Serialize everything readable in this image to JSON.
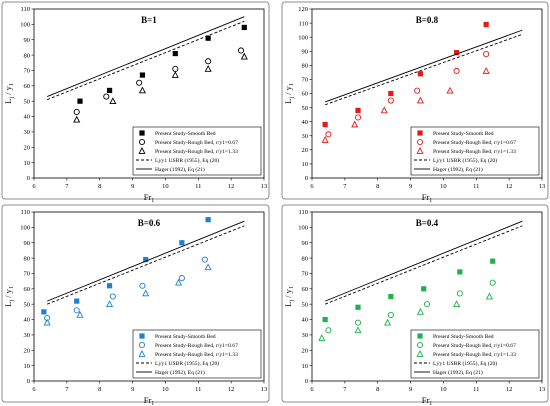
{
  "chart_data": [
    {
      "type": "scatter",
      "title": "B=1",
      "xlabel": "Fr",
      "xlabel_sub": "1",
      "ylabel": "L",
      "ylabel_sub": "j",
      "ylabel_mid": " / y",
      "ylabel_mid_sub": "1",
      "xlim": [
        6,
        13
      ],
      "ylim": [
        0,
        110
      ],
      "xticks": [
        "6",
        "7",
        "8",
        "9",
        "10",
        "11",
        "12",
        "13"
      ],
      "yticks": [
        "0",
        "10",
        "20",
        "30",
        "40",
        "50",
        "60",
        "70",
        "80",
        "90",
        "100",
        "110"
      ],
      "color": "#000000",
      "legend_position": "bottom-right",
      "series": [
        {
          "name": "Present Study-Smooth Bed",
          "marker": "square",
          "x": [
            7.4,
            8.3,
            9.3,
            10.3,
            11.3,
            12.4
          ],
          "y": [
            50,
            57,
            67,
            81,
            91,
            98
          ]
        },
        {
          "name": "Present Study-Rough Bed, r/y1=0.67",
          "marker": "circle",
          "x": [
            7.3,
            8.2,
            9.2,
            10.3,
            11.3,
            12.3
          ],
          "y": [
            43,
            53,
            62,
            71,
            76,
            83
          ]
        },
        {
          "name": "Present Study-Rough Bed, r/y1=1.33",
          "marker": "triangle",
          "x": [
            7.3,
            8.4,
            9.3,
            10.3,
            11.3,
            12.4
          ],
          "y": [
            38,
            50,
            57,
            67,
            71,
            79
          ]
        },
        {
          "name": "Lj/y1 USBR (1955), Eq (20)",
          "style": "dashed",
          "x": [
            6.4,
            12.4
          ],
          "y": [
            51,
            102
          ]
        },
        {
          "name": "Hager (1992), Eq (21)",
          "style": "solid",
          "x": [
            6.4,
            12.4
          ],
          "y": [
            53,
            105
          ]
        }
      ]
    },
    {
      "type": "scatter",
      "title": "B=0.8",
      "xlabel": "Fr",
      "xlabel_sub": "1",
      "ylabel": "L",
      "ylabel_sub": "j",
      "ylabel_mid": " / y",
      "ylabel_mid_sub": "1",
      "xlim": [
        6,
        13
      ],
      "ylim": [
        0,
        120
      ],
      "xticks": [
        "6",
        "7",
        "8",
        "9",
        "10",
        "11",
        "12",
        "13"
      ],
      "yticks": [
        "0",
        "10",
        "20",
        "30",
        "40",
        "50",
        "60",
        "70",
        "80",
        "90",
        "100",
        "110",
        "120"
      ],
      "color": "#e31a1c",
      "legend_position": "bottom-right",
      "series": [
        {
          "name": "Present Study-Smooth Bed",
          "marker": "square",
          "x": [
            6.4,
            7.4,
            8.4,
            9.3,
            10.4,
            11.3
          ],
          "y": [
            38,
            48,
            60,
            74,
            89,
            109
          ]
        },
        {
          "name": "Present Study-Rough Bed, r/y1=0.67",
          "marker": "circle",
          "x": [
            6.5,
            7.4,
            8.4,
            9.2,
            10.4,
            11.3
          ],
          "y": [
            31,
            43,
            55,
            62,
            76,
            88
          ]
        },
        {
          "name": "Present Study-Rough Bed, r/y1=1.33",
          "marker": "triangle",
          "x": [
            6.4,
            7.3,
            8.2,
            9.3,
            10.2,
            11.3
          ],
          "y": [
            27,
            38,
            48,
            55,
            62,
            76
          ]
        },
        {
          "name": "Lj/y1 USBR (1955), Eq (20)",
          "style": "dashed",
          "x": [
            6.4,
            12.4
          ],
          "y": [
            52,
            102
          ]
        },
        {
          "name": "Hager (1992), Eq (21)",
          "style": "solid",
          "x": [
            6.4,
            12.4
          ],
          "y": [
            54,
            105
          ]
        }
      ]
    },
    {
      "type": "scatter",
      "title": "B=0.6",
      "xlabel": "Fr",
      "xlabel_sub": "1",
      "ylabel": "L",
      "ylabel_sub": "j",
      "ylabel_mid": " / y",
      "ylabel_mid_sub": "1",
      "xlim": [
        6,
        13
      ],
      "ylim": [
        0,
        110
      ],
      "xticks": [
        "6",
        "7",
        "8",
        "9",
        "10",
        "11",
        "12",
        "13"
      ],
      "yticks": [
        "0",
        "10",
        "20",
        "30",
        "40",
        "50",
        "60",
        "70",
        "80",
        "90",
        "100",
        "110"
      ],
      "color": "#1f7fd3",
      "legend_position": "bottom-right",
      "series": [
        {
          "name": "Present Study-Smooth Bed",
          "marker": "square",
          "x": [
            6.3,
            7.3,
            8.3,
            9.4,
            10.5,
            11.3
          ],
          "y": [
            45,
            52,
            62,
            79,
            90,
            105
          ]
        },
        {
          "name": "Present Study-Rough Bed, r/y1=0.67",
          "marker": "circle",
          "x": [
            6.4,
            7.3,
            8.4,
            9.3,
            10.5,
            11.2
          ],
          "y": [
            41,
            46,
            55,
            62,
            67,
            79
          ]
        },
        {
          "name": "Present Study-Rough Bed, r/y1=1.33",
          "marker": "triangle",
          "x": [
            6.4,
            7.4,
            8.3,
            9.4,
            10.4,
            11.3
          ],
          "y": [
            38,
            43,
            50,
            57,
            64,
            74
          ]
        },
        {
          "name": "Lj/y1 USBR (1955), Eq (20)",
          "style": "dashed",
          "x": [
            6.4,
            12.4
          ],
          "y": [
            50,
            101
          ]
        },
        {
          "name": "Hager (1992), Eq (21)",
          "style": "solid",
          "x": [
            6.4,
            12.4
          ],
          "y": [
            52,
            104
          ]
        }
      ]
    },
    {
      "type": "scatter",
      "title": "B=0.4",
      "xlabel": "Fr",
      "xlabel_sub": "1",
      "ylabel": "L",
      "ylabel_sub": "j",
      "ylabel_mid": " / y",
      "ylabel_mid_sub": "1",
      "xlim": [
        6,
        13
      ],
      "ylim": [
        0,
        110
      ],
      "xticks": [
        "6",
        "7",
        "8",
        "9",
        "10",
        "11",
        "12",
        "13"
      ],
      "yticks": [
        "0",
        "10",
        "20",
        "30",
        "40",
        "50",
        "60",
        "70",
        "80",
        "90",
        "100",
        "110"
      ],
      "color": "#1db34a",
      "legend_position": "bottom-right",
      "series": [
        {
          "name": "Present Study-Smooth Bed",
          "marker": "square",
          "x": [
            6.4,
            7.4,
            8.4,
            9.4,
            10.5,
            11.5
          ],
          "y": [
            40,
            48,
            55,
            60,
            71,
            78
          ]
        },
        {
          "name": "Present Study-Rough Bed, r/y1=0.67",
          "marker": "circle",
          "x": [
            6.5,
            7.4,
            8.4,
            9.5,
            10.5,
            11.5
          ],
          "y": [
            33,
            38,
            43,
            50,
            57,
            64
          ]
        },
        {
          "name": "Present Study-Rough Bed, r/y1=1.33",
          "marker": "triangle",
          "x": [
            6.3,
            7.4,
            8.3,
            9.3,
            10.4,
            11.4
          ],
          "y": [
            28,
            33,
            38,
            45,
            50,
            55
          ]
        },
        {
          "name": "Lj/y1 USBR (1955), Eq (20)",
          "style": "dashed",
          "x": [
            6.4,
            12.4
          ],
          "y": [
            50,
            101
          ]
        },
        {
          "name": "Hager (1992), Eq (21)",
          "style": "solid",
          "x": [
            6.4,
            12.4
          ],
          "y": [
            52,
            104
          ]
        }
      ]
    }
  ]
}
